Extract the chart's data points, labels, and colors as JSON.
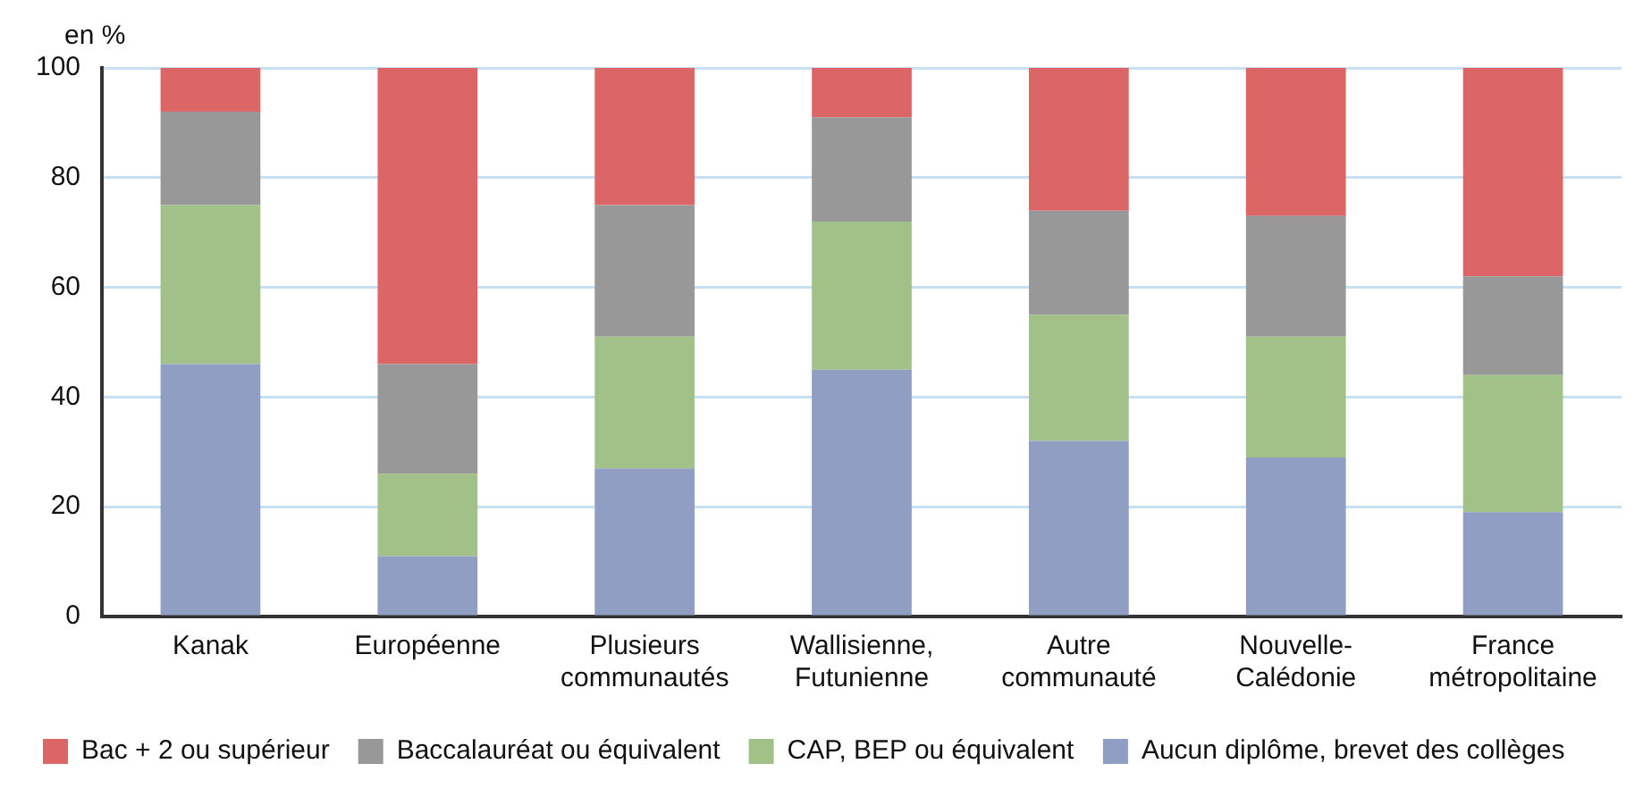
{
  "chart_data": {
    "type": "bar",
    "stacked": true,
    "ylabel": "en %",
    "categories": [
      "Kanak",
      "Européenne",
      "Plusieurs communautés",
      "Wallisienne, Futunienne",
      "Autre communauté",
      "Nouvelle-Calédonie",
      "France métropolitaine"
    ],
    "series": [
      {
        "name": "Aucun diplôme, brevet des collèges",
        "color": "#8f9ec2",
        "values": [
          46,
          11,
          27,
          45,
          32,
          29,
          19
        ]
      },
      {
        "name": "CAP, BEP ou équivalent",
        "color": "#a1c189",
        "values": [
          29,
          15,
          24,
          27,
          23,
          22,
          25
        ]
      },
      {
        "name": "Baccalauréat ou équivalent",
        "color": "#989898",
        "values": [
          17,
          20,
          24,
          19,
          19,
          22,
          18
        ]
      },
      {
        "name": "Bac + 2 ou supérieur",
        "color": "#dc6565",
        "values": [
          8,
          54,
          25,
          9,
          26,
          27,
          38
        ]
      }
    ],
    "ylim": [
      0,
      100
    ],
    "yticks": [
      0,
      20,
      40,
      60,
      80,
      100
    ],
    "grid": "y",
    "legend": "bottom"
  }
}
